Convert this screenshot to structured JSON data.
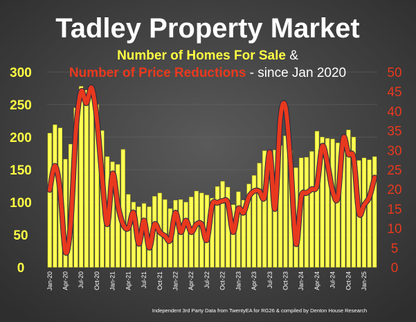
{
  "chart_data": {
    "type": "bar+line",
    "title": "Tadley Property Market",
    "subtitle_1": {
      "series": "Number of Homes For Sale",
      "suffix": " &"
    },
    "subtitle_2": {
      "series": "Number of Price Reductions",
      "suffix": " - since Jan 2020"
    },
    "footer": "Independent 3rd Party Data from TwentyEA for RG26 & compiled by Denton House Research",
    "colors": {
      "bars": "#ffff55",
      "line": "#e8391e",
      "left_axis": "#ffff44",
      "right_axis": "#e8391e",
      "title": "#ffffff"
    },
    "left_axis": {
      "ylim": [
        0,
        300
      ],
      "ticks": [
        "0",
        "50",
        "100",
        "150",
        "200",
        "250",
        "300"
      ]
    },
    "right_axis": {
      "ylim": [
        0,
        50
      ],
      "ticks": [
        "0",
        "5",
        "10",
        "15",
        "20",
        "25",
        "30",
        "35",
        "40",
        "45",
        "50"
      ]
    },
    "x_tick_labels": [
      "Jan-20",
      "Apr-20",
      "Jul-20",
      "Oct-20",
      "Jan-21",
      "Apr-21",
      "Jul-21",
      "Oct-21",
      "Jan-22",
      "Apr-22",
      "Jul-22",
      "Oct-22",
      "Jan-23",
      "Apr-23",
      "Jul-23",
      "Oct-23",
      "Jan-24",
      "Apr-24",
      "Jul-24",
      "Oct-24",
      "Jan-25"
    ],
    "series": [
      {
        "name": "Number of Homes For Sale",
        "type": "bar",
        "axis": "left",
        "values": [
          206,
          219,
          214,
          166,
          189,
          245,
          278,
          272,
          262,
          250,
          210,
          170,
          162,
          158,
          181,
          112,
          100,
          93,
          98,
          93,
          109,
          114,
          104,
          90,
          103,
          104,
          100,
          108,
          117,
          114,
          111,
          106,
          124,
          132,
          123,
          96,
          116,
          103,
          128,
          141,
          160,
          179,
          177,
          180,
          187,
          202,
          179,
          153,
          168,
          169,
          178,
          209,
          200,
          198,
          197,
          191,
          185,
          211,
          200,
          164,
          168,
          165,
          170
        ]
      },
      {
        "name": "Number of Price Reductions",
        "type": "line",
        "axis": "right",
        "values": [
          19.8,
          26,
          19.5,
          4,
          11,
          35,
          45,
          42,
          46,
          38,
          23,
          11,
          24,
          16,
          11,
          10,
          14,
          6,
          12,
          5,
          11,
          9,
          8,
          7,
          14,
          9,
          12,
          9,
          11,
          11,
          7,
          16,
          16.5,
          17,
          16.5,
          9,
          15,
          14,
          18,
          19.5,
          19.5,
          18,
          29.5,
          15,
          38,
          41,
          26,
          6,
          18,
          19,
          20,
          21,
          31,
          26.5,
          19.5,
          18,
          33,
          29,
          28,
          14,
          16,
          18,
          23
        ]
      }
    ]
  }
}
